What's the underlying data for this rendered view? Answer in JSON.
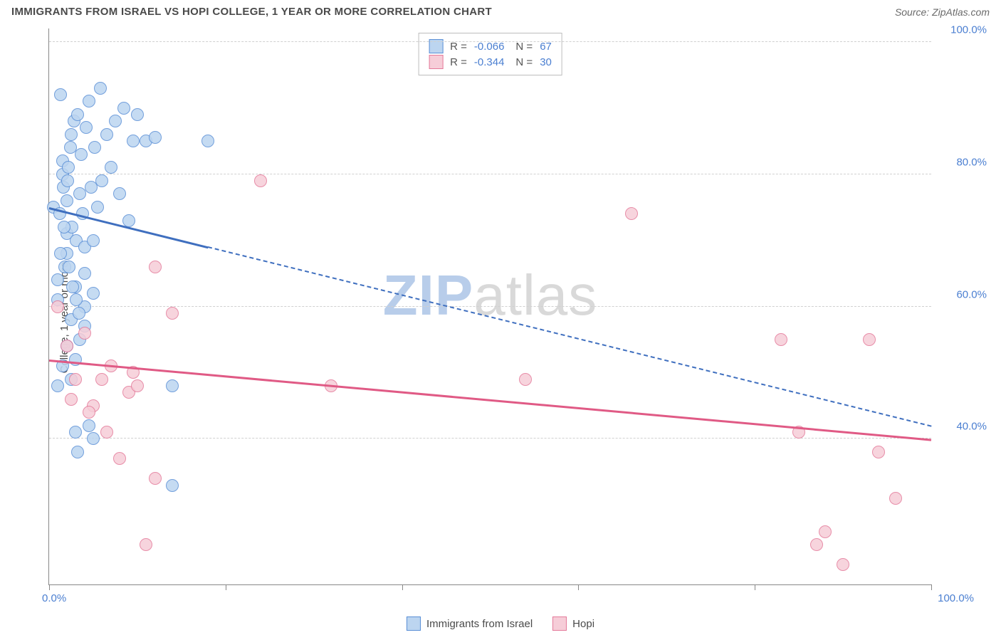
{
  "header": {
    "title": "IMMIGRANTS FROM ISRAEL VS HOPI COLLEGE, 1 YEAR OR MORE CORRELATION CHART",
    "source": "Source: ZipAtlas.com"
  },
  "watermark": {
    "text_a": "ZIP",
    "text_b": "atlas",
    "color_a": "#b8cdea",
    "color_b": "#d9d9d9"
  },
  "chart": {
    "type": "scatter",
    "y_axis_label": "College, 1 year or more",
    "xlim": [
      0,
      100
    ],
    "ylim": [
      18,
      102
    ],
    "x_ticks": [
      0,
      20,
      40,
      60,
      80,
      100
    ],
    "y_grid": [
      40,
      60,
      80,
      100
    ],
    "y_tick_labels": [
      "40.0%",
      "60.0%",
      "80.0%",
      "100.0%"
    ],
    "x_tick_labels": {
      "left": "0.0%",
      "right": "100.0%"
    },
    "axis_label_color": "#4b7fd1",
    "grid_color": "#d0d0d0",
    "background_color": "#ffffff",
    "marker_radius": 9,
    "marker_stroke_width": 1.2,
    "series": [
      {
        "name": "Immigrants from Israel",
        "fill": "#bcd5f0",
        "stroke": "#5a8fd6",
        "r_value": "-0.066",
        "n_value": "67",
        "trend": {
          "x1": 0,
          "y1": 75,
          "x2": 100,
          "y2": 42,
          "solid_until_x": 18,
          "color": "#3f6fbf"
        },
        "points": [
          [
            0.5,
            75
          ],
          [
            1,
            61
          ],
          [
            1,
            64
          ],
          [
            1.2,
            74
          ],
          [
            1.3,
            92
          ],
          [
            1.5,
            80
          ],
          [
            1.5,
            82
          ],
          [
            1.6,
            78
          ],
          [
            1.8,
            66
          ],
          [
            2,
            68
          ],
          [
            2,
            71
          ],
          [
            2,
            76
          ],
          [
            2.1,
            79
          ],
          [
            2.2,
            81
          ],
          [
            2.4,
            84
          ],
          [
            2.5,
            86
          ],
          [
            2.6,
            72
          ],
          [
            2.8,
            88
          ],
          [
            3,
            41
          ],
          [
            3,
            63
          ],
          [
            3.1,
            70
          ],
          [
            3.2,
            89
          ],
          [
            3.5,
            77
          ],
          [
            3.6,
            83
          ],
          [
            3.8,
            74
          ],
          [
            4,
            60
          ],
          [
            4,
            65
          ],
          [
            4,
            69
          ],
          [
            4.2,
            87
          ],
          [
            4.5,
            91
          ],
          [
            4.8,
            78
          ],
          [
            5,
            40
          ],
          [
            5,
            62
          ],
          [
            5,
            70
          ],
          [
            5.2,
            84
          ],
          [
            5.5,
            75
          ],
          [
            5.8,
            93
          ],
          [
            6,
            79
          ],
          [
            6.5,
            86
          ],
          [
            7,
            81
          ],
          [
            7.5,
            88
          ],
          [
            8,
            77
          ],
          [
            8.5,
            90
          ],
          [
            9,
            73
          ],
          [
            9.5,
            85
          ],
          [
            10,
            89
          ],
          [
            4.5,
            42
          ],
          [
            3.2,
            38
          ],
          [
            11,
            85
          ],
          [
            12,
            85.5
          ],
          [
            14,
            33
          ],
          [
            14,
            48
          ],
          [
            2.5,
            49
          ],
          [
            3,
            52
          ],
          [
            3.5,
            55
          ],
          [
            4,
            57
          ],
          [
            1,
            48
          ],
          [
            1.5,
            51
          ],
          [
            2,
            54
          ],
          [
            2.5,
            58
          ],
          [
            1.3,
            68
          ],
          [
            1.7,
            72
          ],
          [
            2.3,
            66
          ],
          [
            2.7,
            63
          ],
          [
            3.1,
            61
          ],
          [
            3.4,
            59
          ],
          [
            18,
            85
          ]
        ]
      },
      {
        "name": "Hopi",
        "fill": "#f6cdd8",
        "stroke": "#e47a9a",
        "r_value": "-0.344",
        "n_value": "30",
        "trend": {
          "x1": 0,
          "y1": 52,
          "x2": 100,
          "y2": 40,
          "solid_until_x": 100,
          "color": "#e05a85"
        },
        "points": [
          [
            1,
            60
          ],
          [
            2,
            54
          ],
          [
            3,
            49
          ],
          [
            4,
            56
          ],
          [
            5,
            45
          ],
          [
            6,
            49
          ],
          [
            7,
            51
          ],
          [
            8,
            37
          ],
          [
            9,
            47
          ],
          [
            10,
            48
          ],
          [
            11,
            24
          ],
          [
            12,
            34
          ],
          [
            12,
            66
          ],
          [
            14,
            59
          ],
          [
            24,
            79
          ],
          [
            32,
            48
          ],
          [
            54,
            49
          ],
          [
            66,
            74
          ],
          [
            83,
            55
          ],
          [
            85,
            41
          ],
          [
            87,
            24
          ],
          [
            88,
            26
          ],
          [
            90,
            21
          ],
          [
            93,
            55
          ],
          [
            94,
            38
          ],
          [
            96,
            31
          ],
          [
            2.5,
            46
          ],
          [
            4.5,
            44
          ],
          [
            6.5,
            41
          ],
          [
            9.5,
            50
          ]
        ]
      }
    ]
  },
  "legend": {
    "items": [
      {
        "label": "Immigrants from Israel",
        "fill": "#bcd5f0",
        "stroke": "#5a8fd6"
      },
      {
        "label": "Hopi",
        "fill": "#f6cdd8",
        "stroke": "#e47a9a"
      }
    ]
  }
}
